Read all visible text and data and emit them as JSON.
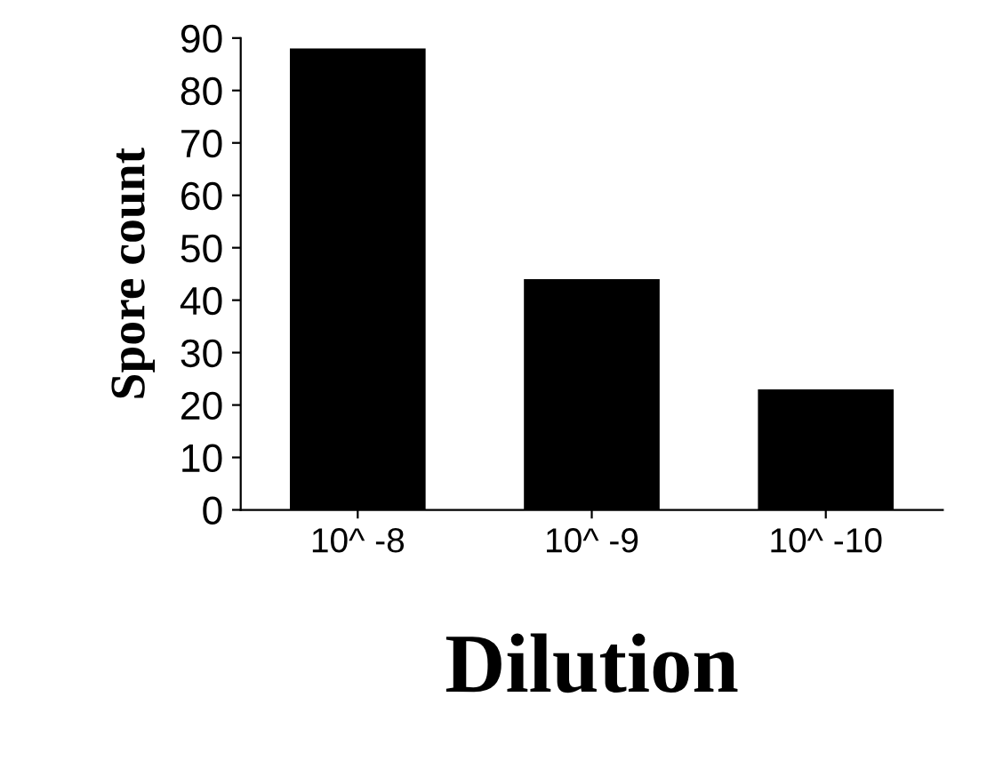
{
  "chart_data": {
    "type": "bar",
    "xlabel": "Dilution",
    "ylabel": "Spore count",
    "categories": [
      "10^ -8",
      "10^ -9",
      "10^ -10"
    ],
    "values": [
      88,
      44,
      23
    ],
    "color": "#000000",
    "ylim": [
      0,
      90
    ],
    "yticks": [
      0,
      10,
      20,
      30,
      40,
      50,
      60,
      70,
      80,
      90
    ],
    "grid": false
  }
}
